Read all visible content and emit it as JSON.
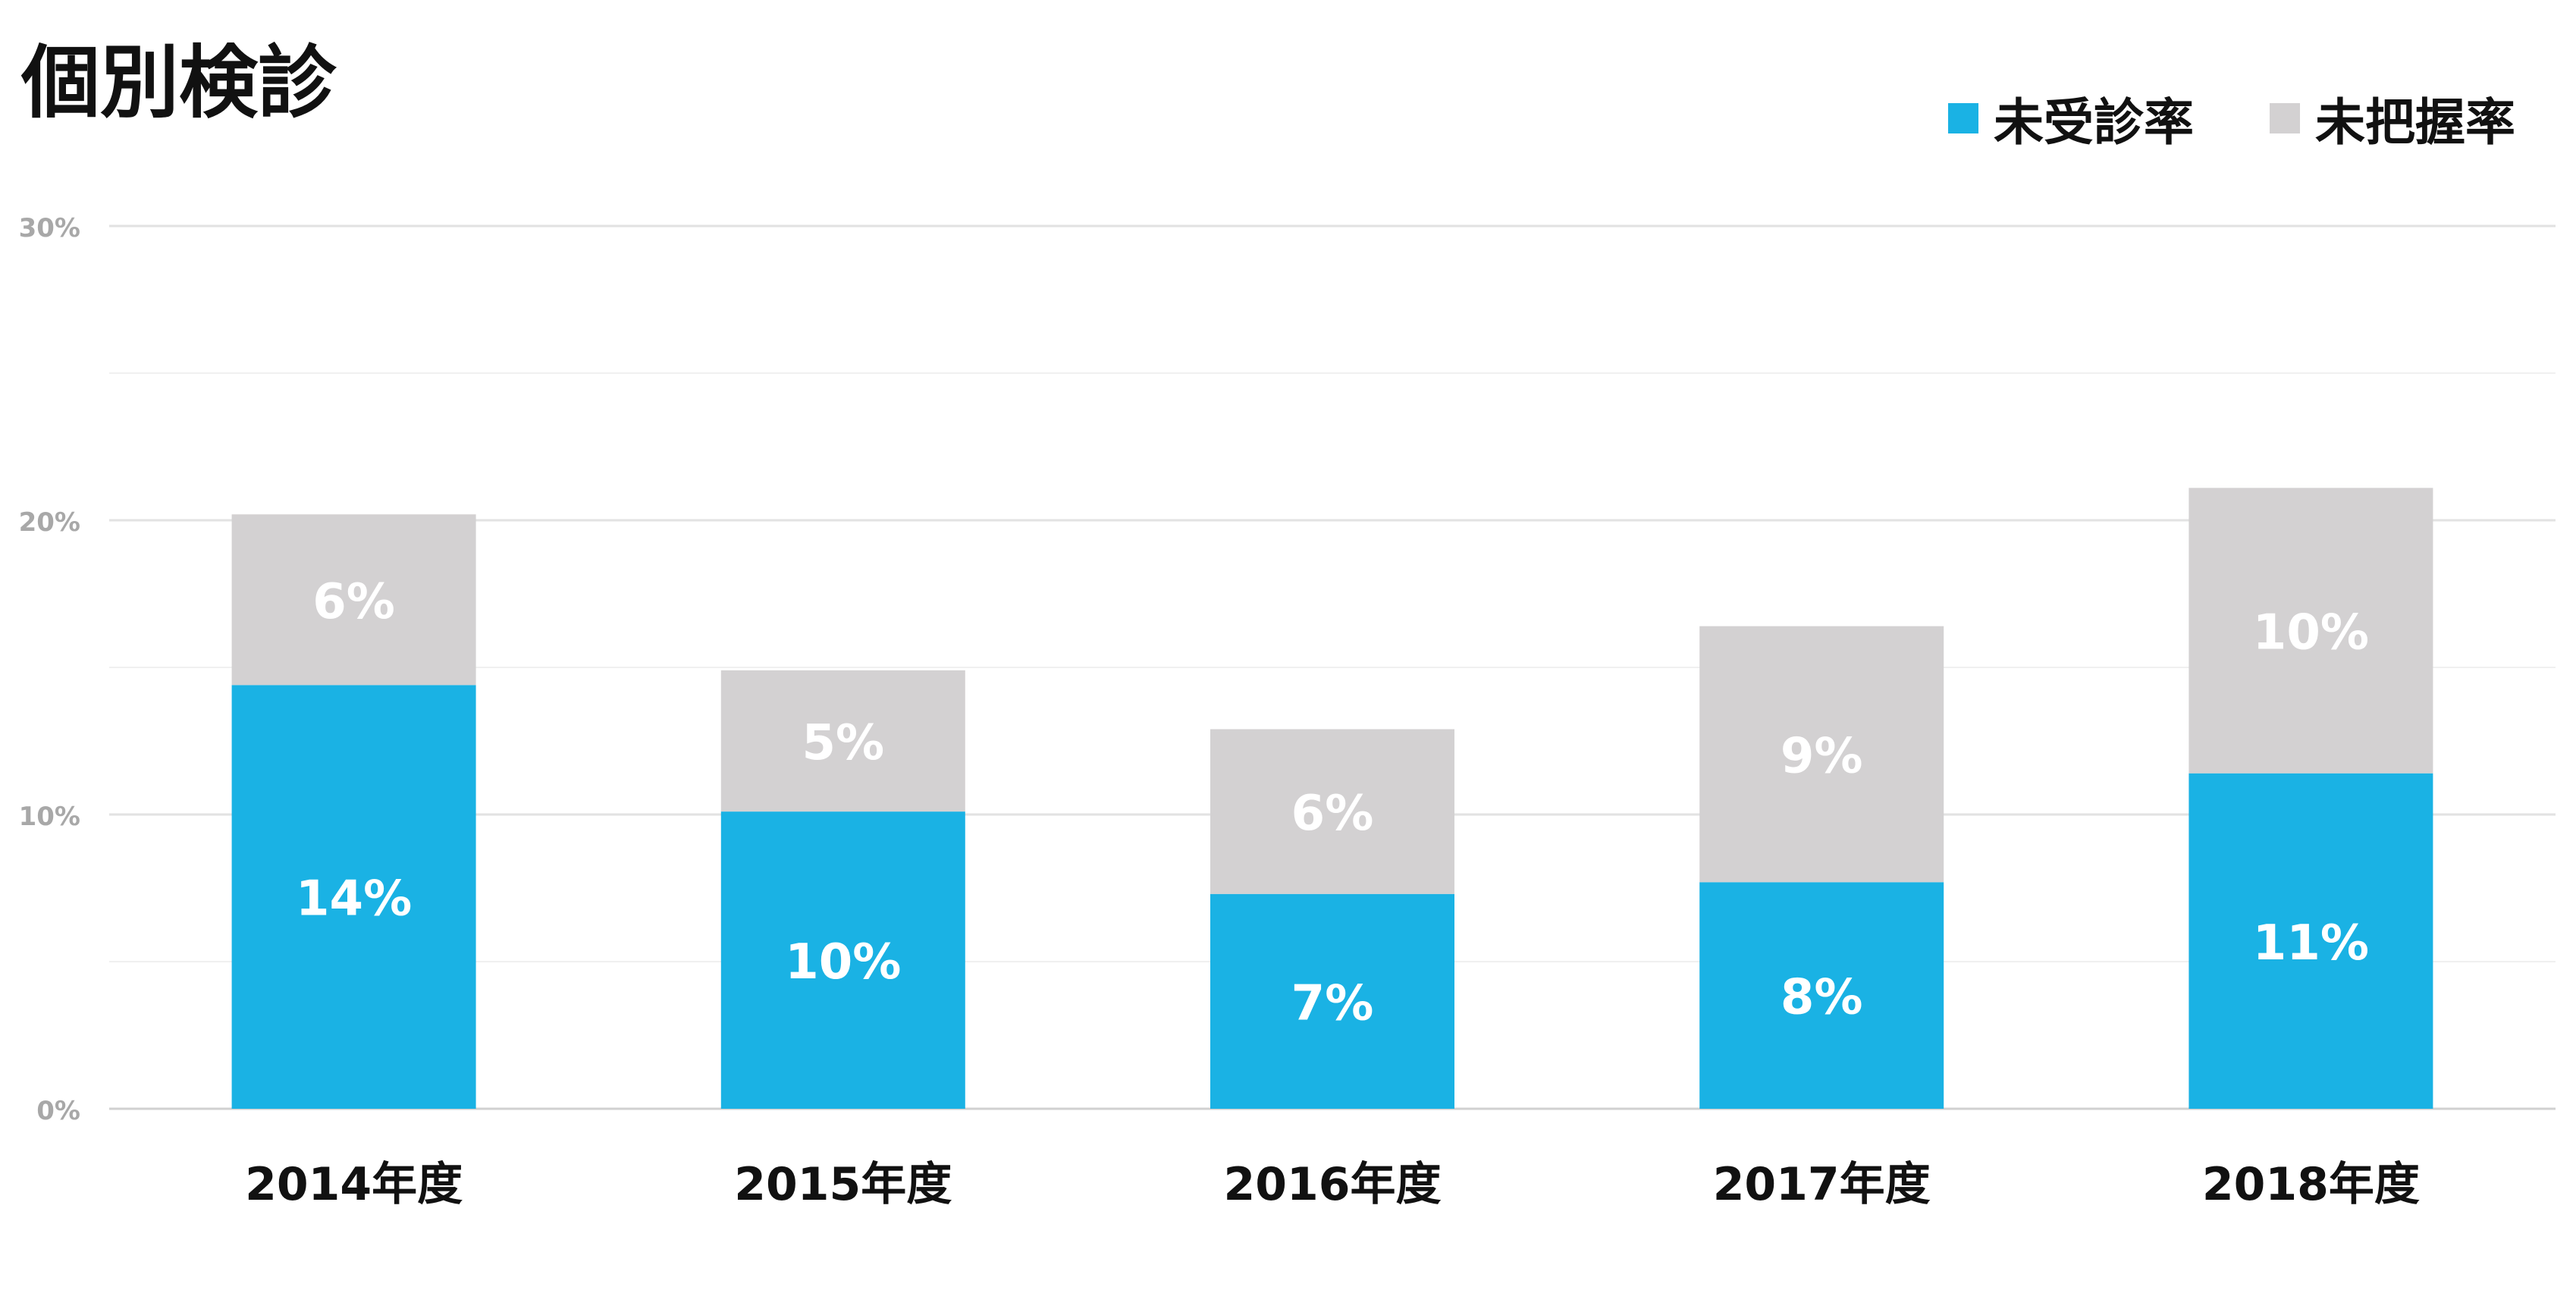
{
  "chart_data": {
    "type": "bar",
    "stacked": true,
    "title": "個別検診",
    "categories": [
      "2014年度",
      "2015年度",
      "2016年度",
      "2017年度",
      "2018年度"
    ],
    "series": [
      {
        "name": "未受診率",
        "color": "#1ab2e4",
        "values": [
          14.4,
          10.1,
          7.3,
          7.7,
          11.4
        ],
        "labels": [
          "14%",
          "10%",
          "7%",
          "8%",
          "11%"
        ]
      },
      {
        "name": "未把握率",
        "color": "#d3d1d2",
        "values": [
          5.8,
          4.8,
          5.6,
          8.7,
          9.7
        ],
        "labels": [
          "6%",
          "5%",
          "6%",
          "9%",
          "10%"
        ]
      }
    ],
    "ylim": [
      0,
      30
    ],
    "yticks": [
      0,
      10,
      20,
      30
    ],
    "yticklabels": [
      "0%",
      "10%",
      "20%",
      "30%"
    ],
    "minor_gridlines": [
      5,
      15,
      25
    ],
    "grid": true,
    "legend_position": "top-right",
    "xlabel": "",
    "ylabel": ""
  }
}
